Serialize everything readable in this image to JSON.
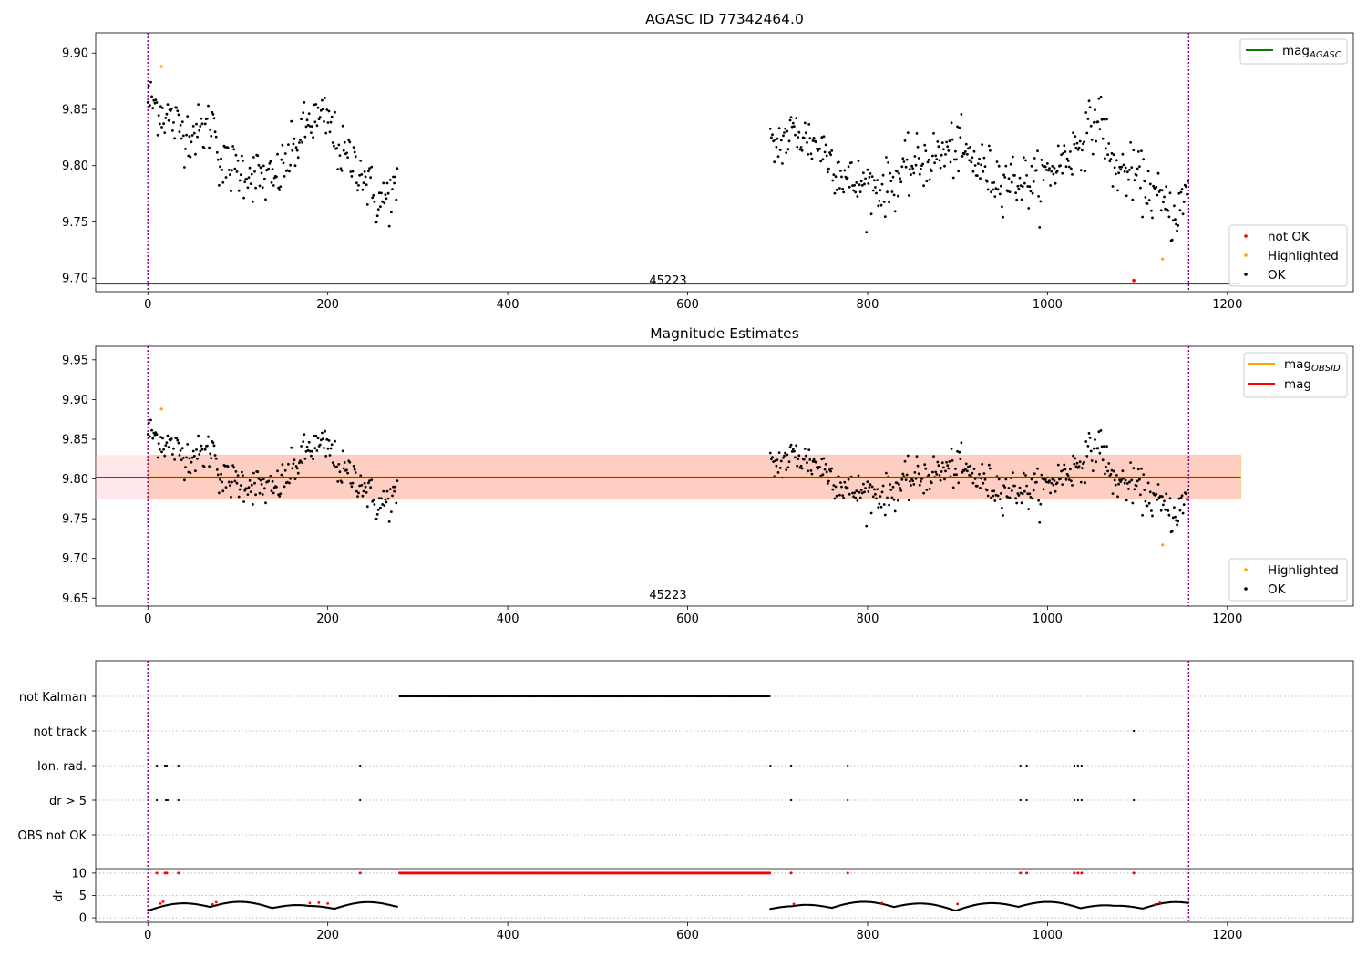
{
  "figure": {
    "panel1": {
      "title": "AGASC ID 77342464.0",
      "annotation": "45223",
      "xticks": [
        0,
        200,
        400,
        600,
        800,
        1000,
        1200
      ],
      "yticks": [
        "9.70",
        "9.75",
        "9.80",
        "9.85",
        "9.90"
      ],
      "legend_top": [
        {
          "label": "mag",
          "sub": "AGASC",
          "color": "#008000"
        }
      ],
      "legend_bottom": [
        {
          "label": "not OK",
          "color": "#ff0000"
        },
        {
          "label": "Highlighted",
          "color": "#ffa500"
        },
        {
          "label": "OK",
          "color": "#000000"
        }
      ]
    },
    "panel2": {
      "title": "Magnitude Estimates",
      "annotation": "45223",
      "xticks": [
        0,
        200,
        400,
        600,
        800,
        1000,
        1200
      ],
      "yticks": [
        "9.65",
        "9.70",
        "9.75",
        "9.80",
        "9.85",
        "9.90",
        "9.95"
      ],
      "legend_top": [
        {
          "label": "mag",
          "sub": "OBSID",
          "color": "#ffa500"
        },
        {
          "label": "mag",
          "sub": "",
          "color": "#ff0000"
        }
      ],
      "legend_bottom": [
        {
          "label": "Highlighted",
          "color": "#ffa500"
        },
        {
          "label": "OK",
          "color": "#000000"
        }
      ]
    },
    "panel3": {
      "ylabel": "dr",
      "flag_rows": [
        "not Kalman",
        "not track",
        "Ion. rad.",
        "dr > 5",
        "OBS not OK"
      ],
      "dr_yticks": [
        "10",
        "5",
        "0"
      ],
      "xticks": [
        0,
        200,
        400,
        600,
        800,
        1000,
        1200
      ]
    }
  },
  "chart_data": [
    {
      "type": "scatter",
      "title": "AGASC ID 77342464.0",
      "xlabel": "",
      "ylabel": "",
      "xlim": [
        -58,
        1340
      ],
      "ylim": [
        9.688,
        9.918
      ],
      "mag_agasc": 9.695,
      "obs_boundaries": [
        0,
        1157
      ],
      "obsid_label": "45223",
      "segments": [
        {
          "x_range": [
            0,
            278
          ],
          "trend": [
            [
              0,
              9.86
            ],
            [
              20,
              9.845
            ],
            [
              40,
              9.83
            ],
            [
              60,
              9.83
            ],
            [
              75,
              9.84
            ],
            [
              80,
              9.8
            ],
            [
              110,
              9.795
            ],
            [
              140,
              9.785
            ],
            [
              160,
              9.81
            ],
            [
              180,
              9.84
            ],
            [
              200,
              9.84
            ],
            [
              215,
              9.81
            ],
            [
              235,
              9.8
            ],
            [
              255,
              9.765
            ],
            [
              278,
              9.78
            ]
          ]
        },
        {
          "x_range": [
            692,
            1157
          ],
          "trend": [
            [
              692,
              9.815
            ],
            [
              720,
              9.83
            ],
            [
              750,
              9.815
            ],
            [
              780,
              9.785
            ],
            [
              820,
              9.78
            ],
            [
              850,
              9.8
            ],
            [
              900,
              9.815
            ],
            [
              940,
              9.79
            ],
            [
              990,
              9.785
            ],
            [
              1030,
              9.815
            ],
            [
              1060,
              9.845
            ],
            [
              1070,
              9.8
            ],
            [
              1100,
              9.79
            ],
            [
              1140,
              9.755
            ],
            [
              1157,
              9.775
            ]
          ]
        }
      ],
      "scatter_sd": 0.012,
      "highlighted": [
        {
          "x": 15,
          "y": 9.888
        },
        {
          "x": 1128,
          "y": 9.717
        }
      ],
      "not_ok": [
        {
          "x": 1096,
          "y": 9.698
        }
      ],
      "series": [
        {
          "name": "not OK",
          "color": "#ff0000"
        },
        {
          "name": "Highlighted",
          "color": "#ffa500"
        },
        {
          "name": "OK",
          "color": "#000000"
        }
      ]
    },
    {
      "type": "scatter",
      "title": "Magnitude Estimates",
      "xlim": [
        -58,
        1340
      ],
      "ylim": [
        9.64,
        9.967
      ],
      "mag": 9.802,
      "mag_band": [
        9.775,
        9.83
      ],
      "mag_x_range": [
        -58,
        1215
      ],
      "obsid_band_x_range": [
        0,
        1215
      ],
      "obsid_label": "45223",
      "highlighted": [
        {
          "x": 15,
          "y": 9.888
        },
        {
          "x": 1128,
          "y": 9.717
        }
      ]
    },
    {
      "type": "scatter",
      "ylabel": "dr",
      "xlim": [
        -58,
        1340
      ],
      "flag_rows": [
        "not Kalman",
        "not track",
        "Ion. rad.",
        "dr > 5",
        "OBS not OK"
      ],
      "not_kalman_range": [
        280,
        692
      ],
      "not_track": [
        1096
      ],
      "ion_rad": [
        10,
        19,
        21,
        34,
        236,
        692,
        715,
        778,
        970,
        977,
        1030,
        1034,
        1038
      ],
      "dr_gt_5": [
        10,
        20,
        22,
        34,
        236,
        715,
        778,
        970,
        977,
        1030,
        1034,
        1038,
        1096
      ],
      "dr_ylim": [
        -1,
        11
      ],
      "dr_clip": 10,
      "dr_clipped_x_range": [
        280,
        692
      ],
      "dr_clipped_extra": [
        10,
        19,
        21,
        34,
        236,
        715,
        778,
        970,
        977,
        1030,
        1034,
        1038,
        1096
      ],
      "dr_red_points": [
        [
          14,
          3.2
        ],
        [
          17,
          3.6
        ],
        [
          72,
          3.0
        ],
        [
          76,
          3.5
        ],
        [
          180,
          3.3
        ],
        [
          190,
          3.4
        ],
        [
          200,
          3.2
        ],
        [
          718,
          3.1
        ],
        [
          816,
          3.3
        ],
        [
          900,
          3.1
        ],
        [
          1120,
          3.0
        ],
        [
          1125,
          3.4
        ]
      ]
    }
  ]
}
